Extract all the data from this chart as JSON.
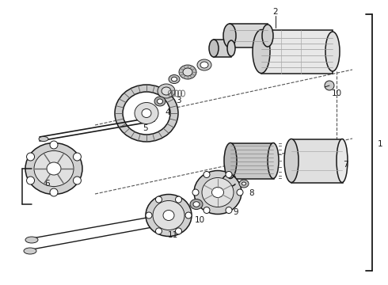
{
  "bg_color": "#ffffff",
  "line_color": "#1a1a1a",
  "label_color": "#1a1a1a",
  "dashed_color": "#555555",
  "bracket_color": "#1a1a1a",
  "lw_main": 1.1,
  "lw_thin": 0.65,
  "lw_bracket": 1.3,
  "label_fs": 7.5,
  "figw": 4.9,
  "figh": 3.6,
  "dpi": 100
}
